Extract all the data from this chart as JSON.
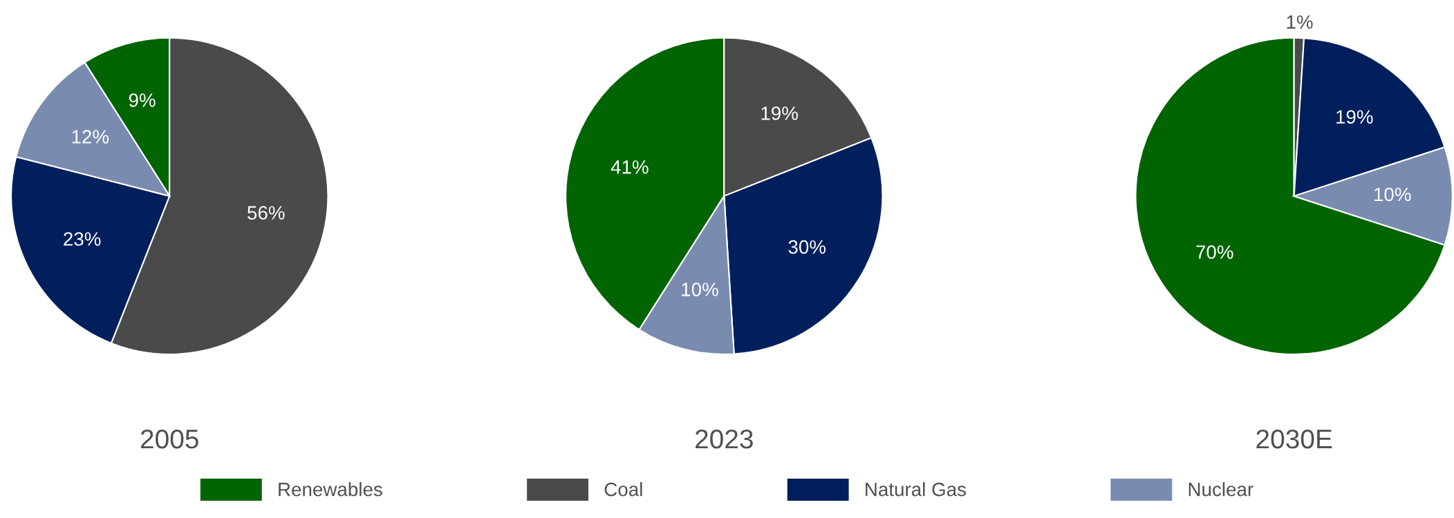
{
  "chart_data": [
    {
      "type": "pie",
      "title": "2005",
      "categories": [
        "Renewables",
        "Coal",
        "Natural Gas",
        "Nuclear"
      ],
      "values": [
        9,
        56,
        23,
        12
      ],
      "colors": [
        "#006400",
        "#4a4a4a",
        "#001f5c",
        "#7a8bb0"
      ],
      "value_labels": [
        "9%",
        "56%",
        "23%",
        "12%"
      ],
      "legend": "bottom"
    },
    {
      "type": "pie",
      "title": "2023",
      "categories": [
        null,
        null,
        null,
        null
      ],
      "values": [
        41,
        19,
        30,
        10
      ],
      "colors": [
        "#006400",
        "#4a4a4a",
        "#001f5c",
        "#7a8bb0"
      ],
      "value_labels": [
        "41%",
        "19%",
        "30%",
        "10%"
      ]
    },
    {
      "type": "pie",
      "title": "2030E",
      "categories": [
        null,
        null,
        null,
        null
      ],
      "values": [
        70,
        1,
        19,
        10
      ],
      "colors": [
        "#006400",
        "#4a4a4a",
        "#001f5c",
        "#7a8bb0"
      ],
      "value_labels": [
        "70%",
        "1%",
        "19%",
        "10%"
      ]
    }
  ]
}
